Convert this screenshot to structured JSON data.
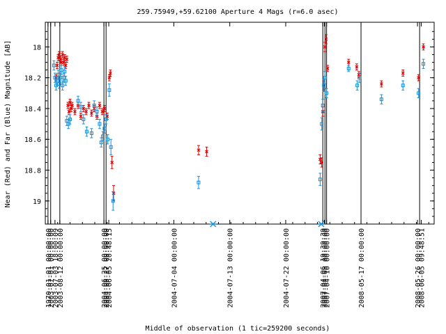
{
  "chart_data": {
    "type": "scatter",
    "title": "259.75949,+59.62100   Aperture 4 Mags (r=6.0 asec)",
    "xlabel": "Middle of observation (1 tic=259200 seconds)",
    "ylabel": "Near (Red) and Far (Blue) Magnitude [AB]",
    "ylim": [
      19.15,
      17.84
    ],
    "y_inverted": true,
    "yticks": [
      "18",
      "18.2",
      "18.4",
      "18.6",
      "18.8",
      "19"
    ],
    "ytick_values": [
      18.0,
      18.2,
      18.4,
      18.6,
      18.8,
      19.0
    ],
    "xticks": [
      {
        "label": "1970-01-01 00:00:00",
        "x": 0.5
      },
      {
        "label": "2003-07-01 00:00:00",
        "x": 1.0
      },
      {
        "label": "2003-07-03 18:00:09",
        "x": 1.8
      },
      {
        "label": "2003-08-12 00:00:00",
        "x": 2.7
      },
      {
        "label": "2004-06-25 00:00:00",
        "x": 10.9
      },
      {
        "label": "2004-06-27 00:00:00",
        "x": 11.3
      },
      {
        "label": "2004-06-05 20:48:15",
        "x": 11.8
      },
      {
        "label": "2004-07-04 00:00:00",
        "x": 23.9
      },
      {
        "label": "2004-07-13 00:00:00",
        "x": 34.3
      },
      {
        "label": "2004-07-22 00:00:00",
        "x": 44.7
      },
      {
        "label": "2007-04-06 19:39:39",
        "x": 51.6
      },
      {
        "label": "2007-04-08 00:00:00",
        "x": 51.9
      },
      {
        "label": "2007-04-10 00:00:00",
        "x": 52.3
      },
      {
        "label": "2008-05-17 00:00:00",
        "x": 58.7
      },
      {
        "label": "2008-05-26 00:00:00",
        "x": 69.2
      },
      {
        "label": "2008-06-05 09:48:51",
        "x": 69.9
      }
    ],
    "vlines": [
      0.5,
      1.0,
      2.7,
      10.9,
      11.3,
      51.6,
      52.0,
      52.3,
      58.7,
      69.6
    ],
    "xlim": [
      0,
      72.3
    ],
    "series": [
      {
        "color": "#e00000",
        "marker": "x",
        "points": [
          [
            2.0,
            18.2,
            0.02
          ],
          [
            2.2,
            18.12,
            0.02
          ],
          [
            2.4,
            18.07,
            0.02
          ],
          [
            2.6,
            18.05,
            0.02
          ],
          [
            2.8,
            18.08,
            0.02
          ],
          [
            3.0,
            18.1,
            0.02
          ],
          [
            3.2,
            18.05,
            0.02
          ],
          [
            3.4,
            18.1,
            0.02
          ],
          [
            3.6,
            18.07,
            0.02
          ],
          [
            3.8,
            18.12,
            0.02
          ],
          [
            4.0,
            18.08,
            0.02
          ],
          [
            4.2,
            18.38,
            0.02
          ],
          [
            4.4,
            18.42,
            0.02
          ],
          [
            4.6,
            18.36,
            0.02
          ],
          [
            4.8,
            18.4,
            0.02
          ],
          [
            5.0,
            18.38,
            0.02
          ],
          [
            5.5,
            18.42,
            0.02
          ],
          [
            6.1,
            18.38,
            0.02
          ],
          [
            6.6,
            18.45,
            0.02
          ],
          [
            7.1,
            18.4,
            0.02
          ],
          [
            7.6,
            18.42,
            0.02
          ],
          [
            8.1,
            18.38,
            0.02
          ],
          [
            8.6,
            18.43,
            0.02
          ],
          [
            9.1,
            18.4,
            0.02
          ],
          [
            9.6,
            18.45,
            0.02
          ],
          [
            10.1,
            18.38,
            0.02
          ],
          [
            10.6,
            18.42,
            0.02
          ],
          [
            11.0,
            18.4,
            0.02
          ],
          [
            11.5,
            18.45,
            0.02
          ],
          [
            11.9,
            18.2,
            0.02
          ],
          [
            12.1,
            18.17,
            0.02
          ],
          [
            12.4,
            18.75,
            0.04
          ],
          [
            12.7,
            18.95,
            0.05
          ],
          [
            28.5,
            18.67,
            0.03
          ],
          [
            30.0,
            18.68,
            0.03
          ],
          [
            51.1,
            18.73,
            0.03
          ],
          [
            51.4,
            18.75,
            0.03
          ],
          [
            51.6,
            18.42,
            0.03
          ],
          [
            51.8,
            18.25,
            0.03
          ],
          [
            52.0,
            18.0,
            0.03
          ],
          [
            52.2,
            17.95,
            0.03
          ],
          [
            52.5,
            18.14,
            0.02
          ],
          [
            56.4,
            18.1,
            0.02
          ],
          [
            57.9,
            18.13,
            0.02
          ],
          [
            58.3,
            18.18,
            0.02
          ],
          [
            62.5,
            18.24,
            0.02
          ],
          [
            66.5,
            18.17,
            0.02
          ],
          [
            69.4,
            18.2,
            0.02
          ],
          [
            70.3,
            18.0,
            0.02
          ]
        ]
      },
      {
        "color": "#1a8fd8",
        "marker": "square",
        "points": [
          [
            1.6,
            18.12,
            0.03
          ],
          [
            1.8,
            18.2,
            0.03
          ],
          [
            2.0,
            18.25,
            0.03
          ],
          [
            2.2,
            18.22,
            0.03
          ],
          [
            2.4,
            18.18,
            0.03
          ],
          [
            2.6,
            18.24,
            0.03
          ],
          [
            2.8,
            18.2,
            0.03
          ],
          [
            3.0,
            18.15,
            0.03
          ],
          [
            3.2,
            18.25,
            0.03
          ],
          [
            3.4,
            18.2,
            0.03
          ],
          [
            3.6,
            18.16,
            0.03
          ],
          [
            3.8,
            18.22,
            0.03
          ],
          [
            4.0,
            18.48,
            0.03
          ],
          [
            4.3,
            18.5,
            0.03
          ],
          [
            4.6,
            18.47,
            0.03
          ],
          [
            6.1,
            18.35,
            0.03
          ],
          [
            6.6,
            18.39,
            0.03
          ],
          [
            7.1,
            18.47,
            0.03
          ],
          [
            7.7,
            18.55,
            0.03
          ],
          [
            8.6,
            18.56,
            0.03
          ],
          [
            9.1,
            18.38,
            0.03
          ],
          [
            9.6,
            18.42,
            0.03
          ],
          [
            10.1,
            18.5,
            0.03
          ],
          [
            10.4,
            18.62,
            0.03
          ],
          [
            10.7,
            18.58,
            0.03
          ],
          [
            11.0,
            18.53,
            0.03
          ],
          [
            11.3,
            18.47,
            0.03
          ],
          [
            11.6,
            18.6,
            0.03
          ],
          [
            11.9,
            18.28,
            0.04
          ],
          [
            12.2,
            18.65,
            0.05
          ],
          [
            12.6,
            19.0,
            0.06
          ],
          [
            28.5,
            18.88,
            0.04
          ],
          [
            51.1,
            18.86,
            0.04
          ],
          [
            51.4,
            18.5,
            0.04
          ],
          [
            51.6,
            18.38,
            0.04
          ],
          [
            51.8,
            18.25,
            0.04
          ],
          [
            52.0,
            18.2,
            0.04
          ],
          [
            52.3,
            18.3,
            0.03
          ],
          [
            56.4,
            18.14,
            0.02
          ],
          [
            58.0,
            18.25,
            0.03
          ],
          [
            58.4,
            18.2,
            0.03
          ],
          [
            62.5,
            18.34,
            0.03
          ],
          [
            66.5,
            18.25,
            0.03
          ],
          [
            69.4,
            18.3,
            0.03
          ],
          [
            70.3,
            18.11,
            0.03
          ]
        ]
      }
    ],
    "star_markers": [
      {
        "x": 31.2,
        "color": "#1a8fd8"
      },
      {
        "x": 51.3,
        "color": "#1a8fd8"
      }
    ]
  }
}
